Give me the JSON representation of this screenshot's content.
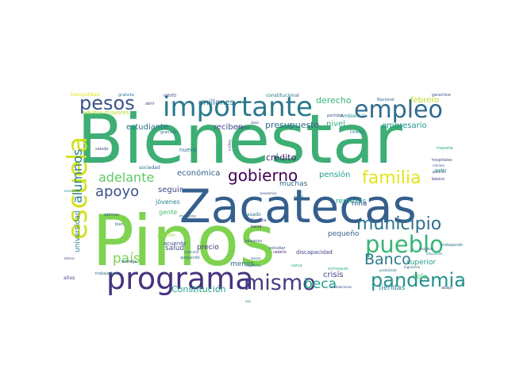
{
  "word_cloud": {
    "words": [
      {
        "text": "Bienestar",
        "color": "#3dae74"
      },
      {
        "text": "Pinos",
        "color": "#7fd350"
      },
      {
        "text": "Zacatecas",
        "color": "#355f8d"
      },
      {
        "text": "importante",
        "color": "#2a788e"
      },
      {
        "text": "programa",
        "color": "#46327e"
      },
      {
        "text": "escuela",
        "color": "#d1e11c"
      },
      {
        "text": "empleo",
        "color": "#30698e"
      },
      {
        "text": "pueblo",
        "color": "#36b677"
      },
      {
        "text": "mismo",
        "color": "#433d84"
      },
      {
        "text": "pandemia",
        "color": "#21918c"
      },
      {
        "text": "pesos",
        "color": "#3a538b"
      },
      {
        "text": "municipio",
        "color": "#2c728e"
      },
      {
        "text": "gobierno",
        "color": "#440154"
      },
      {
        "text": "familia",
        "color": "#e5e419"
      },
      {
        "text": "Banco",
        "color": "#2a788e"
      },
      {
        "text": "apoyo",
        "color": "#3b528b"
      },
      {
        "text": "alumnos",
        "color": "#26828e"
      },
      {
        "text": "adelante",
        "color": "#5ec962"
      },
      {
        "text": "país",
        "color": "#7ad151"
      },
      {
        "text": "beca",
        "color": "#1f9e89"
      },
      {
        "text": "Constitución",
        "color": "#22a785"
      },
      {
        "text": "presupuesto",
        "color": "#31688e"
      },
      {
        "text": "millones",
        "color": "#2e6e8e"
      },
      {
        "text": "crédito",
        "color": "#482173"
      },
      {
        "text": "derecho",
        "color": "#35b779"
      },
      {
        "text": "empresario",
        "color": "#1f948c"
      },
      {
        "text": "nivel",
        "color": "#2db27d"
      },
      {
        "text": "febrero",
        "color": "#bddf26"
      },
      {
        "text": "estudiante",
        "color": "#2c728e"
      },
      {
        "text": "reciben",
        "color": "#3e4989"
      },
      {
        "text": "económica",
        "color": "#33638d"
      },
      {
        "text": "seguir",
        "color": "#404588"
      },
      {
        "text": "muchas",
        "color": "#31688e"
      },
      {
        "text": "pensión",
        "color": "#1fa088"
      },
      {
        "text": "remesas",
        "color": "#20a486"
      },
      {
        "text": "superior",
        "color": "#1f988b"
      },
      {
        "text": "solo",
        "color": "#52c569"
      },
      {
        "text": "crisis",
        "color": "#3f4788"
      },
      {
        "text": "tiendas",
        "color": "#26828e"
      },
      {
        "text": "salud",
        "color": "#3b528b"
      },
      {
        "text": "precio",
        "color": "#46327e"
      },
      {
        "text": "menos",
        "color": "#2d708e"
      },
      {
        "text": "universidad",
        "color": "#287d8e"
      },
      {
        "text": "jóvenes",
        "color": "#25858e"
      },
      {
        "text": "gente",
        "color": "#4ac16d"
      },
      {
        "text": "niña",
        "color": "#3a548c"
      },
      {
        "text": "pequeño",
        "color": "#355e8d"
      },
      {
        "text": "discapacidad",
        "color": "#414487"
      },
      {
        "text": "salario",
        "color": "#482475"
      },
      {
        "text": "estudiar",
        "color": "#3b528b"
      },
      {
        "text": "Ambiental",
        "color": "#238a8d"
      },
      {
        "text": "Nacional",
        "color": "#33638d"
      },
      {
        "text": "partidos",
        "color": "#3b528b"
      },
      {
        "text": "constitucional",
        "color": "#2d708e"
      },
      {
        "text": "adultos mayores",
        "color": "#b8de29"
      },
      {
        "text": "tranquilidad",
        "color": "#e2e418"
      },
      {
        "text": "gratuita",
        "color": "#2a788e"
      },
      {
        "text": "COVID",
        "color": "#404588"
      },
      {
        "text": "abril",
        "color": "#3e4989"
      },
      {
        "text": "grandes",
        "color": "#2c728e"
      },
      {
        "text": "dosis",
        "color": "#3f4889"
      },
      {
        "text": "maestra",
        "color": "#453781"
      },
      {
        "text": "garantice",
        "color": "#3b528b"
      },
      {
        "text": "mayoría",
        "color": "#1f9f88"
      },
      {
        "text": "hospitales",
        "color": "#3e4989"
      },
      {
        "text": "padres",
        "color": "#3d4d8a"
      },
      {
        "text": "poder",
        "color": "#26828e"
      },
      {
        "text": "básico",
        "color": "#46327e"
      },
      {
        "text": "mínimo",
        "color": "#3b528b"
      },
      {
        "text": "trabajando",
        "color": "#2a788e"
      },
      {
        "text": "educación",
        "color": "#25848e"
      },
      {
        "text": "inscritos",
        "color": "#443a83"
      },
      {
        "text": "Ingeniería",
        "color": "#355f8d"
      },
      {
        "text": "instalaciones",
        "color": "#3c4f8a"
      },
      {
        "text": "abajo",
        "color": "#3e4a89"
      },
      {
        "text": "años",
        "color": "#3f4788"
      },
      {
        "text": "trabajadores",
        "color": "#2f6b8e"
      },
      {
        "text": "nuevo",
        "color": "#2c738e"
      },
      {
        "text": "sociedad",
        "color": "#31688e"
      },
      {
        "text": "saludo",
        "color": "#404588"
      },
      {
        "text": "entrega",
        "color": "#3a548c"
      },
      {
        "text": "apoyando",
        "color": "#2b758e"
      },
      {
        "text": "consumo",
        "color": "#34608d"
      },
      {
        "text": "acuerdo",
        "color": "#3d4e8a"
      },
      {
        "text": "artículo",
        "color": "#9fda3a"
      },
      {
        "text": "Guardia",
        "color": "#3e4c8a"
      },
      {
        "text": "hacia",
        "color": "#482878"
      },
      {
        "text": "pasado",
        "color": "#2e6f8e"
      },
      {
        "text": "paisanos",
        "color": "#3b528b"
      },
      {
        "text": "saludamos",
        "color": "#38598c"
      },
      {
        "text": "migrantes",
        "color": "#2d708e"
      },
      {
        "text": "Directo",
        "color": "#27808e"
      },
      {
        "text": "posibilidad",
        "color": "#2c728e"
      },
      {
        "text": "entregado",
        "color": "#37b878"
      },
      {
        "text": "médicos",
        "color": "#2f6c8e"
      },
      {
        "text": "salimos",
        "color": "#3d4d8a"
      },
      {
        "text": "bien",
        "color": "#3a548c"
      },
      {
        "text": "dinero",
        "color": "#443983"
      },
      {
        "text": "Seguro",
        "color": "#3f4788"
      },
      {
        "text": "amaro",
        "color": "#39558c"
      },
      {
        "text": "cerca",
        "color": "#25ab82"
      },
      {
        "text": "ayuda",
        "color": "#2b748e"
      },
      {
        "text": "eso",
        "color": "#2a768e"
      },
      {
        "text": "economía",
        "color": "#24878e"
      }
    ]
  }
}
